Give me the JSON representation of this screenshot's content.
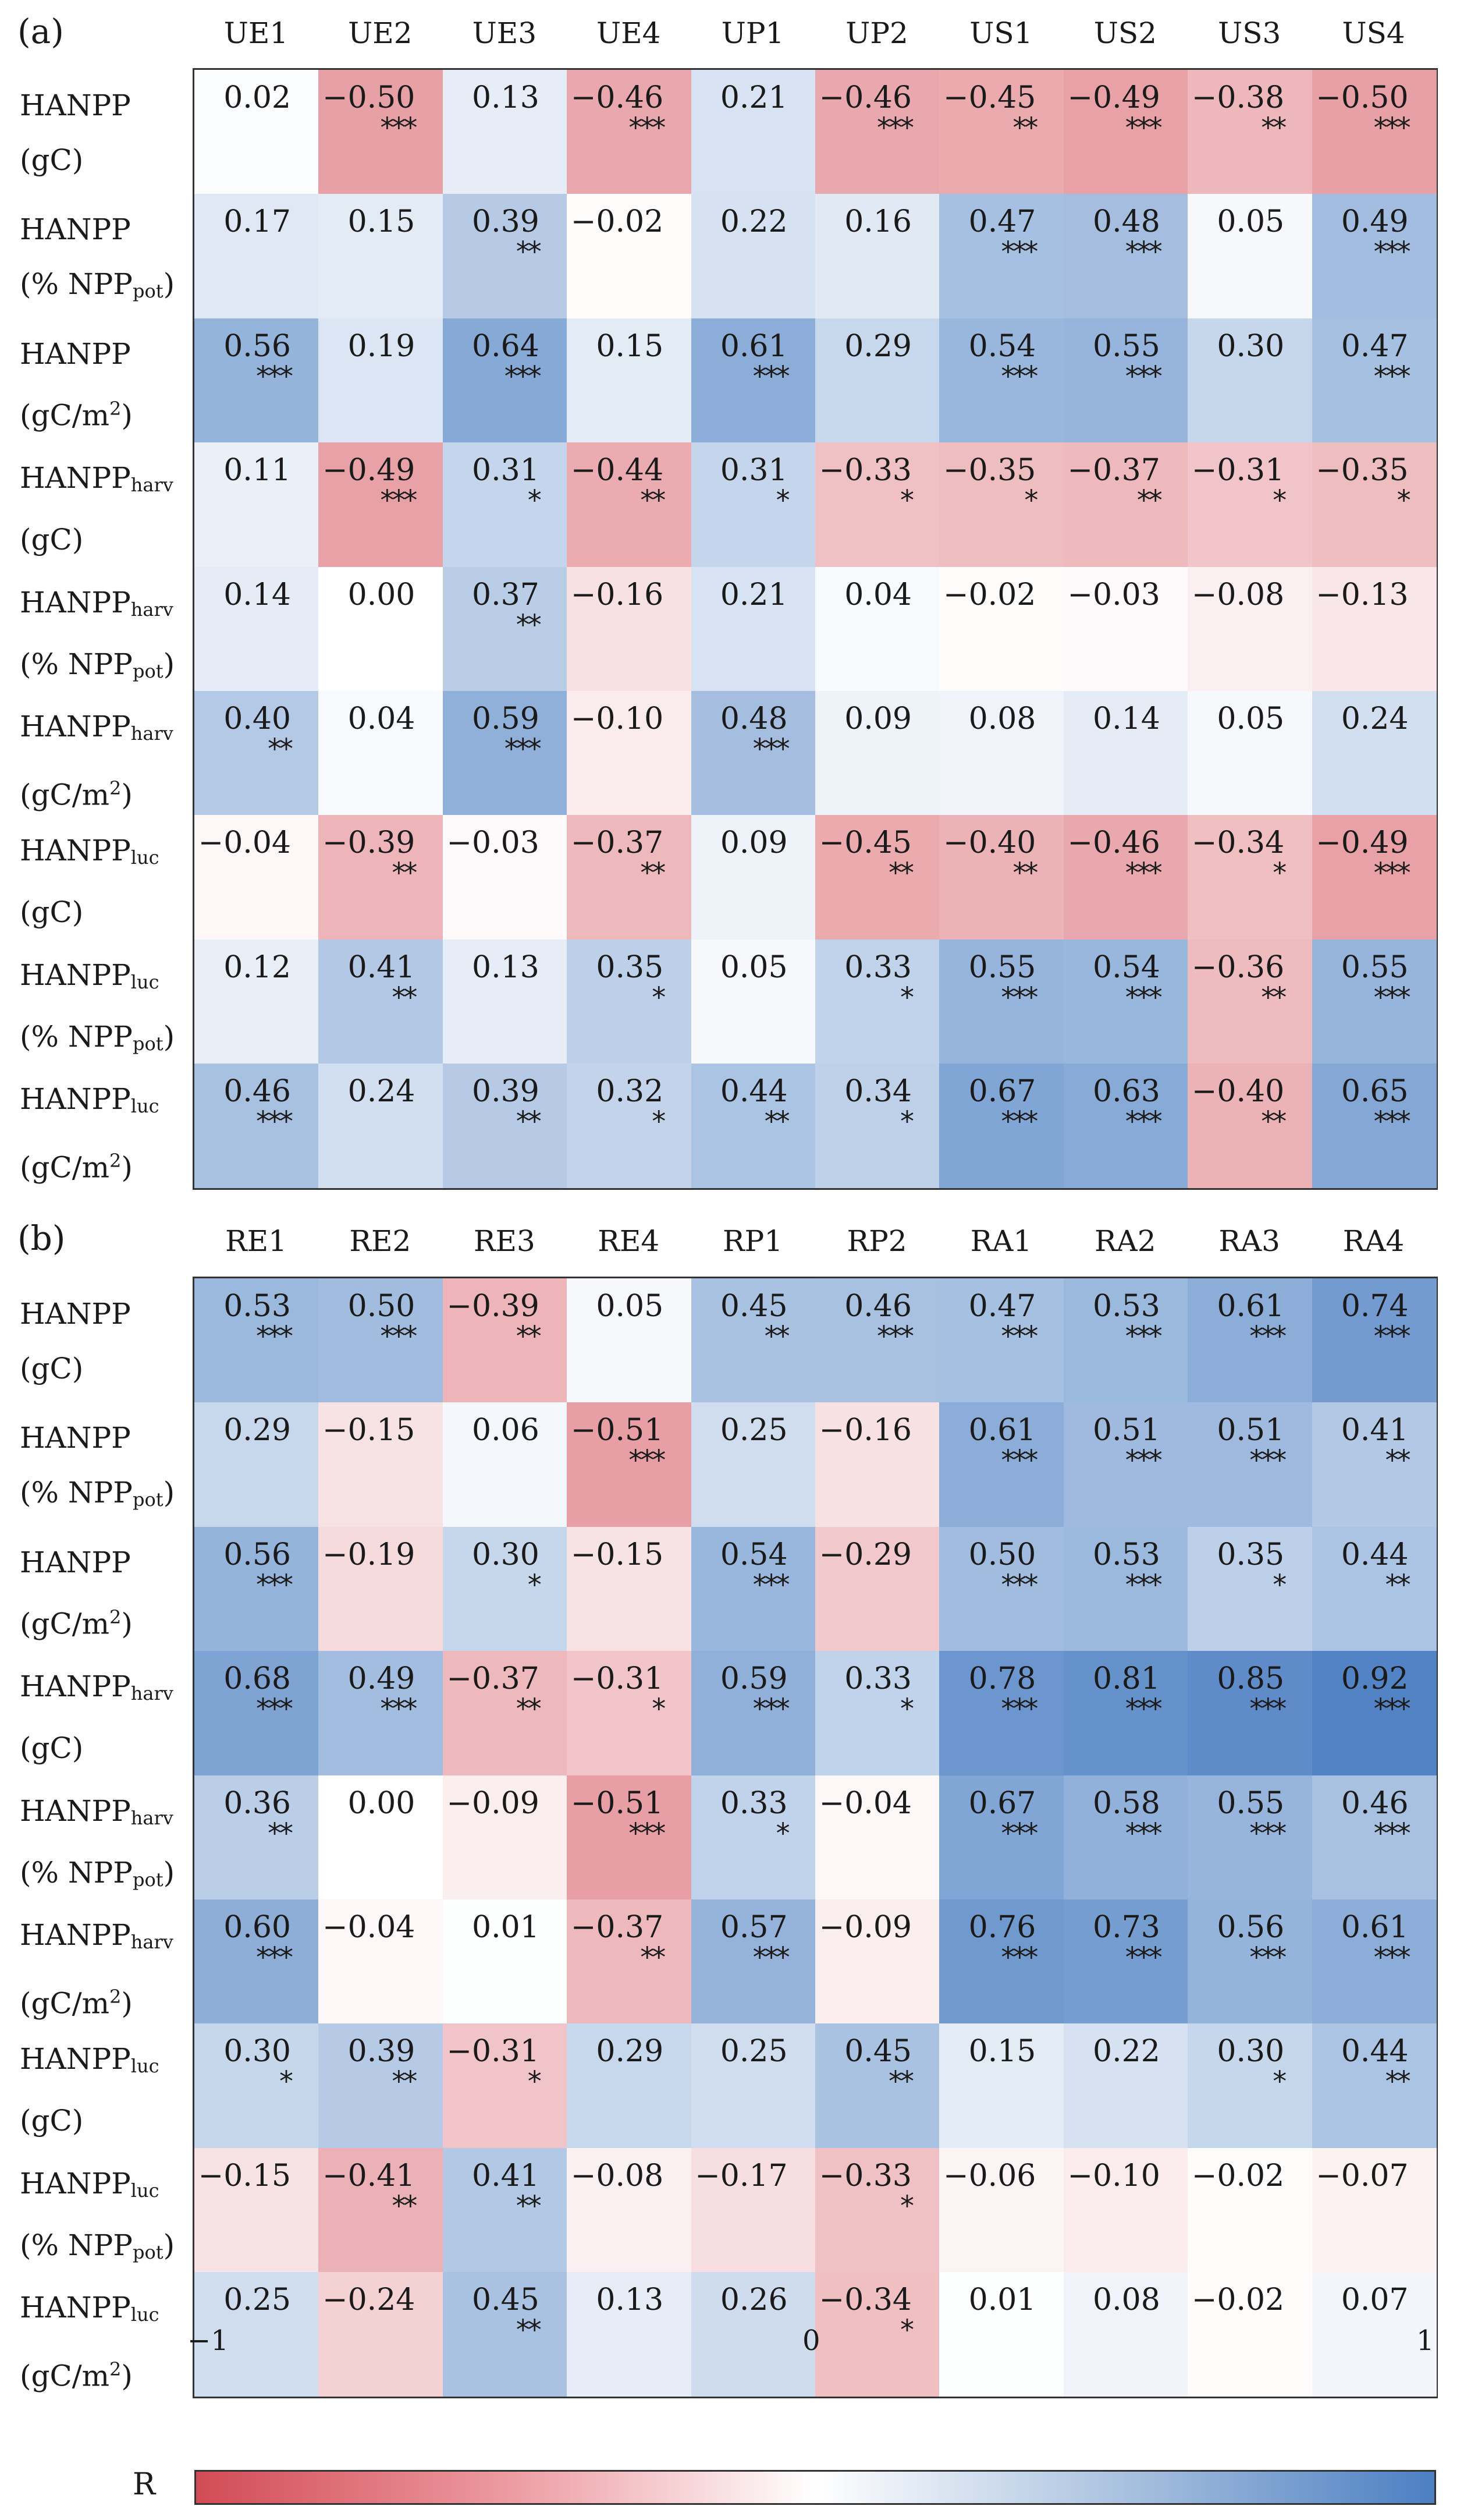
{
  "chart_data": [
    {
      "type": "heatmap",
      "panel": "(a)",
      "columns": [
        "UE1",
        "UE2",
        "UE3",
        "UE4",
        "UP1",
        "UP2",
        "US1",
        "US2",
        "US3",
        "US4"
      ],
      "rows": [
        {
          "main": "HANPP",
          "sub": "",
          "unit_pre": "(gC)",
          "unit_sub": "",
          "unit_sup": "",
          "unit_post": ""
        },
        {
          "main": "HANPP",
          "sub": "",
          "unit_pre": "(% NPP",
          "unit_sub": "pot",
          "unit_sup": "",
          "unit_post": ")"
        },
        {
          "main": "HANPP",
          "sub": "",
          "unit_pre": "(gC/m",
          "unit_sub": "",
          "unit_sup": "2",
          "unit_post": ")"
        },
        {
          "main": "HANPP",
          "sub": "harv",
          "unit_pre": "(gC)",
          "unit_sub": "",
          "unit_sup": "",
          "unit_post": ""
        },
        {
          "main": "HANPP",
          "sub": "harv",
          "unit_pre": "(% NPP",
          "unit_sub": "pot",
          "unit_sup": "",
          "unit_post": ")"
        },
        {
          "main": "HANPP",
          "sub": "harv",
          "unit_pre": "(gC/m",
          "unit_sub": "",
          "unit_sup": "2",
          "unit_post": ")"
        },
        {
          "main": "HANPP",
          "sub": "luc",
          "unit_pre": "(gC)",
          "unit_sub": "",
          "unit_sup": "",
          "unit_post": ""
        },
        {
          "main": "HANPP",
          "sub": "luc",
          "unit_pre": "(% NPP",
          "unit_sub": "pot",
          "unit_sup": "",
          "unit_post": ")"
        },
        {
          "main": "HANPP",
          "sub": "luc",
          "unit_pre": "(gC/m",
          "unit_sub": "",
          "unit_sup": "2",
          "unit_post": ")"
        }
      ],
      "values": [
        [
          0.02,
          -0.5,
          0.13,
          -0.46,
          0.21,
          -0.46,
          -0.45,
          -0.49,
          -0.38,
          -0.5
        ],
        [
          0.17,
          0.15,
          0.39,
          -0.02,
          0.22,
          0.16,
          0.47,
          0.48,
          0.05,
          0.49
        ],
        [
          0.56,
          0.19,
          0.64,
          0.15,
          0.61,
          0.29,
          0.54,
          0.55,
          0.3,
          0.47
        ],
        [
          0.11,
          -0.49,
          0.31,
          -0.44,
          0.31,
          -0.33,
          -0.35,
          -0.37,
          -0.31,
          -0.35
        ],
        [
          0.14,
          0.0,
          0.37,
          -0.16,
          0.21,
          0.04,
          -0.02,
          -0.03,
          -0.08,
          -0.13
        ],
        [
          0.4,
          0.04,
          0.59,
          -0.1,
          0.48,
          0.09,
          0.08,
          0.14,
          0.05,
          0.24
        ],
        [
          -0.04,
          -0.39,
          -0.03,
          -0.37,
          0.09,
          -0.45,
          -0.4,
          -0.46,
          -0.34,
          -0.49
        ],
        [
          0.12,
          0.41,
          0.13,
          0.35,
          0.05,
          0.33,
          0.55,
          0.54,
          -0.36,
          0.55
        ],
        [
          0.46,
          0.24,
          0.39,
          0.32,
          0.44,
          0.34,
          0.67,
          0.63,
          -0.4,
          0.65
        ]
      ],
      "significance": [
        [
          "",
          "***",
          "",
          "***",
          "",
          "***",
          "**",
          "***",
          "**",
          "***"
        ],
        [
          "",
          "",
          "**",
          "",
          "",
          "",
          "***",
          "***",
          "",
          "***"
        ],
        [
          "***",
          "",
          "***",
          "",
          "***",
          "",
          "***",
          "***",
          "",
          "***"
        ],
        [
          "",
          "***",
          "*",
          "**",
          "*",
          "*",
          "*",
          "**",
          "*",
          "*"
        ],
        [
          "",
          "",
          "**",
          "",
          "",
          "",
          "",
          "",
          "",
          ""
        ],
        [
          "**",
          "",
          "***",
          "",
          "***",
          "",
          "",
          "",
          "",
          ""
        ],
        [
          "",
          "**",
          "",
          "**",
          "",
          "**",
          "**",
          "***",
          "*",
          "***"
        ],
        [
          "",
          "**",
          "",
          "*",
          "",
          "*",
          "***",
          "***",
          "**",
          "***"
        ],
        [
          "***",
          "",
          "**",
          "*",
          "**",
          "*",
          "***",
          "***",
          "**",
          "***"
        ]
      ]
    },
    {
      "type": "heatmap",
      "panel": "(b)",
      "columns": [
        "RE1",
        "RE2",
        "RE3",
        "RE4",
        "RP1",
        "RP2",
        "RA1",
        "RA2",
        "RA3",
        "RA4"
      ],
      "rows": [
        {
          "main": "HANPP",
          "sub": "",
          "unit_pre": "(gC)",
          "unit_sub": "",
          "unit_sup": "",
          "unit_post": ""
        },
        {
          "main": "HANPP",
          "sub": "",
          "unit_pre": "(% NPP",
          "unit_sub": "pot",
          "unit_sup": "",
          "unit_post": ")"
        },
        {
          "main": "HANPP",
          "sub": "",
          "unit_pre": "(gC/m",
          "unit_sub": "",
          "unit_sup": "2",
          "unit_post": ")"
        },
        {
          "main": "HANPP",
          "sub": "harv",
          "unit_pre": "(gC)",
          "unit_sub": "",
          "unit_sup": "",
          "unit_post": ""
        },
        {
          "main": "HANPP",
          "sub": "harv",
          "unit_pre": "(% NPP",
          "unit_sub": "pot",
          "unit_sup": "",
          "unit_post": ")"
        },
        {
          "main": "HANPP",
          "sub": "harv",
          "unit_pre": "(gC/m",
          "unit_sub": "",
          "unit_sup": "2",
          "unit_post": ")"
        },
        {
          "main": "HANPP",
          "sub": "luc",
          "unit_pre": "(gC)",
          "unit_sub": "",
          "unit_sup": "",
          "unit_post": ""
        },
        {
          "main": "HANPP",
          "sub": "luc",
          "unit_pre": "(% NPP",
          "unit_sub": "pot",
          "unit_sup": "",
          "unit_post": ")"
        },
        {
          "main": "HANPP",
          "sub": "luc",
          "unit_pre": "(gC/m",
          "unit_sub": "",
          "unit_sup": "2",
          "unit_post": ")"
        }
      ],
      "values": [
        [
          0.53,
          0.5,
          -0.39,
          0.05,
          0.45,
          0.46,
          0.47,
          0.53,
          0.61,
          0.74
        ],
        [
          0.29,
          -0.15,
          0.06,
          -0.51,
          0.25,
          -0.16,
          0.61,
          0.51,
          0.51,
          0.41
        ],
        [
          0.56,
          -0.19,
          0.3,
          -0.15,
          0.54,
          -0.29,
          0.5,
          0.53,
          0.35,
          0.44
        ],
        [
          0.68,
          0.49,
          -0.37,
          -0.31,
          0.59,
          0.33,
          0.78,
          0.81,
          0.85,
          0.92
        ],
        [
          0.36,
          0.0,
          -0.09,
          -0.51,
          0.33,
          -0.04,
          0.67,
          0.58,
          0.55,
          0.46
        ],
        [
          0.6,
          -0.04,
          0.01,
          -0.37,
          0.57,
          -0.09,
          0.76,
          0.73,
          0.56,
          0.61
        ],
        [
          0.3,
          0.39,
          -0.31,
          0.29,
          0.25,
          0.45,
          0.15,
          0.22,
          0.3,
          0.44
        ],
        [
          -0.15,
          -0.41,
          0.41,
          -0.08,
          -0.17,
          -0.33,
          -0.06,
          -0.1,
          -0.02,
          -0.07
        ],
        [
          0.25,
          -0.24,
          0.45,
          0.13,
          0.26,
          -0.34,
          0.01,
          0.08,
          -0.02,
          0.07
        ]
      ],
      "significance": [
        [
          "***",
          "***",
          "**",
          "",
          "**",
          "***",
          "***",
          "***",
          "***",
          "***"
        ],
        [
          "",
          "",
          "",
          "***",
          "",
          "",
          "***",
          "***",
          "***",
          "**"
        ],
        [
          "***",
          "",
          "*",
          "",
          "***",
          "",
          "***",
          "***",
          "*",
          "**"
        ],
        [
          "***",
          "***",
          "**",
          "*",
          "***",
          "*",
          "***",
          "***",
          "***",
          "***"
        ],
        [
          "**",
          "",
          "",
          "***",
          "*",
          "",
          "***",
          "***",
          "***",
          "***"
        ],
        [
          "***",
          "",
          "",
          "**",
          "***",
          "",
          "***",
          "***",
          "***",
          "***"
        ],
        [
          "*",
          "**",
          "*",
          "",
          "",
          "**",
          "",
          "",
          "*",
          "**"
        ],
        [
          "",
          "**",
          "**",
          "",
          "",
          "*",
          "",
          "",
          "",
          ""
        ],
        [
          "",
          "",
          "**",
          "",
          "",
          "*",
          "",
          "",
          "",
          ""
        ]
      ]
    }
  ],
  "colorbar": {
    "label": "R",
    "ticks": [
      "−1",
      "0",
      "1"
    ],
    "range": [
      -1,
      1
    ],
    "low_color": "#d24b55",
    "mid_color": "#ffffff",
    "high_color": "#4c7fc2"
  }
}
